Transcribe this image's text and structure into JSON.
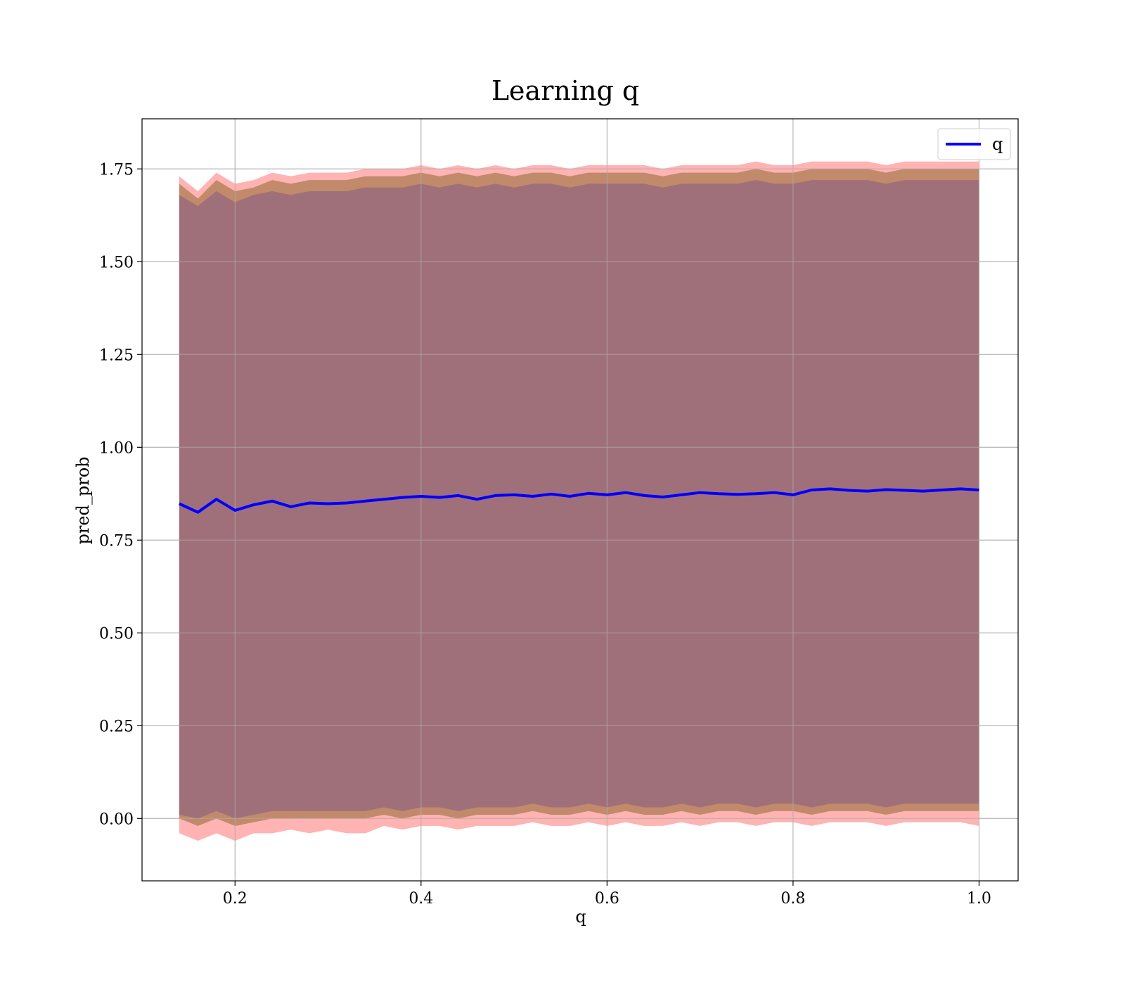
{
  "chart_data": {
    "type": "line",
    "title": "Learning q",
    "xlabel": "q",
    "ylabel": "pred_prob",
    "xlim": [
      0.1,
      1.042
    ],
    "ylim": [
      -0.168,
      1.885
    ],
    "xticks": [
      0.2,
      0.4,
      0.6,
      0.8,
      1.0
    ],
    "xtick_labels": [
      "0.2",
      "0.4",
      "0.6",
      "0.8",
      "1.0"
    ],
    "yticks": [
      0.0,
      0.25,
      0.5,
      0.75,
      1.0,
      1.25,
      1.5,
      1.75
    ],
    "ytick_labels": [
      "0.00",
      "0.25",
      "0.50",
      "0.75",
      "1.00",
      "1.25",
      "1.50",
      "1.75"
    ],
    "grid": true,
    "legend": {
      "position": "top-right",
      "entries": [
        "q"
      ]
    },
    "colors": {
      "line": "#0000ff",
      "outer_band": "#ff9999",
      "middle_band": "#b5835e",
      "inner_band": "#a0707a",
      "grid": "#b0b0b0"
    },
    "series": [
      {
        "name": "q",
        "x": [
          0.14,
          0.16,
          0.18,
          0.2,
          0.22,
          0.24,
          0.26,
          0.28,
          0.3,
          0.32,
          0.34,
          0.36,
          0.38,
          0.4,
          0.42,
          0.44,
          0.46,
          0.48,
          0.5,
          0.52,
          0.54,
          0.56,
          0.58,
          0.6,
          0.62,
          0.64,
          0.66,
          0.68,
          0.7,
          0.72,
          0.74,
          0.76,
          0.78,
          0.8,
          0.82,
          0.84,
          0.86,
          0.88,
          0.9,
          0.92,
          0.94,
          0.96,
          0.98,
          1.0
        ],
        "y": [
          0.848,
          0.825,
          0.86,
          0.83,
          0.845,
          0.855,
          0.84,
          0.85,
          0.848,
          0.85,
          0.855,
          0.86,
          0.865,
          0.868,
          0.865,
          0.87,
          0.86,
          0.87,
          0.872,
          0.868,
          0.874,
          0.868,
          0.876,
          0.872,
          0.878,
          0.87,
          0.866,
          0.872,
          0.878,
          0.875,
          0.873,
          0.875,
          0.878,
          0.872,
          0.885,
          0.888,
          0.884,
          0.882,
          0.886,
          0.884,
          0.882,
          0.885,
          0.888,
          0.885
        ]
      }
    ],
    "bands": [
      {
        "name": "outer",
        "lower": [
          -0.04,
          -0.06,
          -0.04,
          -0.06,
          -0.04,
          -0.04,
          -0.03,
          -0.04,
          -0.03,
          -0.04,
          -0.04,
          -0.02,
          -0.03,
          -0.02,
          -0.02,
          -0.03,
          -0.02,
          -0.02,
          -0.02,
          -0.01,
          -0.02,
          -0.02,
          -0.01,
          -0.02,
          -0.01,
          -0.02,
          -0.02,
          -0.01,
          -0.02,
          -0.01,
          -0.01,
          -0.02,
          -0.01,
          -0.01,
          -0.02,
          -0.01,
          -0.01,
          -0.01,
          -0.02,
          -0.01,
          -0.01,
          -0.01,
          -0.01,
          -0.02
        ],
        "upper": [
          1.73,
          1.69,
          1.74,
          1.71,
          1.72,
          1.74,
          1.73,
          1.74,
          1.74,
          1.74,
          1.75,
          1.75,
          1.75,
          1.76,
          1.75,
          1.76,
          1.75,
          1.76,
          1.75,
          1.76,
          1.76,
          1.75,
          1.76,
          1.76,
          1.76,
          1.76,
          1.75,
          1.76,
          1.76,
          1.76,
          1.76,
          1.77,
          1.76,
          1.76,
          1.77,
          1.77,
          1.77,
          1.77,
          1.76,
          1.77,
          1.77,
          1.77,
          1.77,
          1.77
        ]
      },
      {
        "name": "middle",
        "lower": [
          0.0,
          -0.02,
          0.0,
          -0.02,
          -0.01,
          0.0,
          0.0,
          0.0,
          0.0,
          0.0,
          0.0,
          0.01,
          0.0,
          0.01,
          0.01,
          0.0,
          0.01,
          0.01,
          0.01,
          0.02,
          0.01,
          0.01,
          0.02,
          0.01,
          0.02,
          0.01,
          0.01,
          0.02,
          0.01,
          0.02,
          0.02,
          0.01,
          0.02,
          0.02,
          0.01,
          0.02,
          0.02,
          0.02,
          0.01,
          0.02,
          0.02,
          0.02,
          0.02,
          0.02
        ],
        "upper": [
          1.71,
          1.67,
          1.72,
          1.69,
          1.7,
          1.72,
          1.71,
          1.72,
          1.72,
          1.72,
          1.73,
          1.73,
          1.73,
          1.74,
          1.73,
          1.74,
          1.73,
          1.74,
          1.73,
          1.74,
          1.74,
          1.73,
          1.74,
          1.74,
          1.74,
          1.74,
          1.73,
          1.74,
          1.74,
          1.74,
          1.74,
          1.75,
          1.74,
          1.74,
          1.75,
          1.75,
          1.75,
          1.75,
          1.74,
          1.75,
          1.75,
          1.75,
          1.75,
          1.75
        ]
      },
      {
        "name": "inner",
        "lower": [
          0.01,
          0.0,
          0.02,
          0.0,
          0.01,
          0.02,
          0.02,
          0.02,
          0.02,
          0.02,
          0.02,
          0.03,
          0.02,
          0.03,
          0.03,
          0.02,
          0.03,
          0.03,
          0.03,
          0.04,
          0.03,
          0.03,
          0.04,
          0.03,
          0.04,
          0.03,
          0.03,
          0.04,
          0.03,
          0.04,
          0.04,
          0.03,
          0.04,
          0.04,
          0.03,
          0.04,
          0.04,
          0.04,
          0.03,
          0.04,
          0.04,
          0.04,
          0.04,
          0.04
        ],
        "upper": [
          1.68,
          1.65,
          1.69,
          1.66,
          1.68,
          1.69,
          1.68,
          1.69,
          1.69,
          1.69,
          1.7,
          1.7,
          1.7,
          1.71,
          1.7,
          1.71,
          1.7,
          1.71,
          1.7,
          1.71,
          1.71,
          1.7,
          1.71,
          1.71,
          1.71,
          1.71,
          1.7,
          1.71,
          1.71,
          1.71,
          1.71,
          1.72,
          1.71,
          1.71,
          1.72,
          1.72,
          1.72,
          1.72,
          1.71,
          1.72,
          1.72,
          1.72,
          1.72,
          1.72
        ]
      }
    ]
  }
}
